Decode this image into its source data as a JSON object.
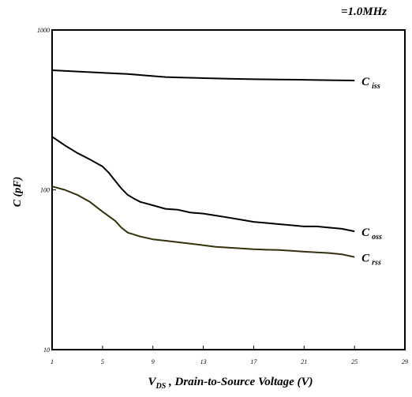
{
  "condition_text": "=1.0MHz",
  "chart_data": {
    "type": "line",
    "title": "",
    "xlabel": {
      "main": "V",
      "sub": "DS",
      "rest": " , Drain-to-Source Voltage (V)"
    },
    "ylabel": "C (pF)",
    "x_ticks": [
      1,
      5,
      9,
      13,
      17,
      21,
      25,
      29
    ],
    "x_tick_labels": [
      "1",
      "5",
      "9",
      "13",
      "17",
      "21",
      "25",
      "29"
    ],
    "xlim": [
      1,
      29
    ],
    "y_scale": "log",
    "ylim": [
      10,
      1000
    ],
    "y_ticks": [
      10,
      100,
      1000
    ],
    "y_tick_labels": [
      "10",
      "100",
      "1000"
    ],
    "grid": false,
    "series": [
      {
        "name": "iss",
        "label_main": "C",
        "label_sub": "iss",
        "color": "#000000",
        "x": [
          1,
          3,
          5,
          7,
          9,
          10,
          11,
          13,
          15,
          17,
          19,
          21,
          23,
          25
        ],
        "y": [
          560,
          550,
          540,
          530,
          515,
          508,
          505,
          500,
          495,
          492,
          490,
          488,
          485,
          483
        ]
      },
      {
        "name": "oss",
        "label_main": "C",
        "label_sub": "oss",
        "color": "#000000",
        "x": [
          1,
          2,
          3,
          4,
          5,
          5.5,
          6,
          6.5,
          7,
          7.5,
          8,
          9,
          10,
          11,
          12,
          13,
          14,
          15,
          16,
          17,
          18,
          19,
          20,
          21,
          22,
          23,
          24,
          25
        ],
        "y": [
          215,
          190,
          170,
          155,
          140,
          128,
          114,
          102,
          93,
          88,
          84,
          80,
          76,
          75,
          72,
          71,
          69,
          67,
          65,
          63,
          62,
          61,
          60,
          59,
          59,
          58,
          57,
          55
        ]
      },
      {
        "name": "rss",
        "label_main": "C",
        "label_sub": "rss",
        "color": "#33300a",
        "x": [
          1,
          2,
          3,
          4,
          5,
          6,
          6.5,
          7,
          8,
          9,
          10,
          11,
          12,
          13,
          14,
          15,
          16,
          17,
          18,
          19,
          20,
          21,
          22,
          23,
          24,
          25
        ],
        "y": [
          105,
          100,
          93,
          84,
          73,
          64,
          58,
          54,
          51,
          49,
          48,
          47,
          46,
          45,
          44,
          43.5,
          43,
          42.5,
          42.2,
          42,
          41.5,
          41,
          40.6,
          40.2,
          39.5,
          38
        ]
      }
    ]
  }
}
